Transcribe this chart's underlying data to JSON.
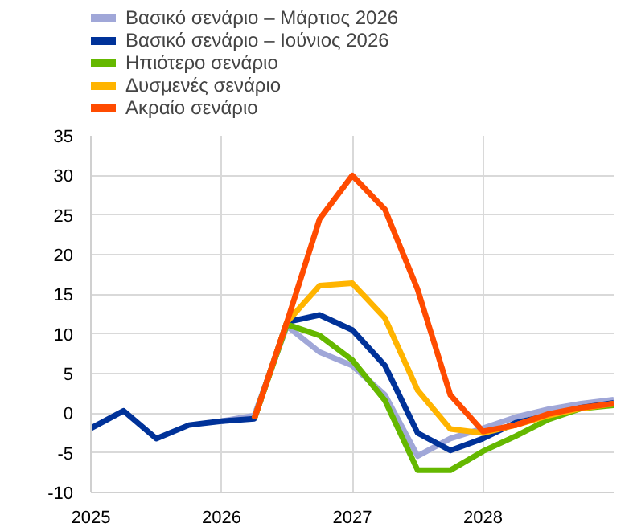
{
  "chart_data": {
    "type": "line",
    "xlim": [
      2025,
      2029
    ],
    "xticks": [
      2025,
      2026,
      2027,
      2028
    ],
    "ylim": [
      -10,
      35
    ],
    "yticks": [
      -10,
      -5,
      0,
      5,
      10,
      15,
      20,
      25,
      30,
      35
    ],
    "grid": true,
    "legend": "top left",
    "line_style": "solid",
    "marker": "none",
    "series": [
      {
        "name": "Βασικό σενάριο – Μάρτιος 2026",
        "color": "#a0a7d8",
        "x": [
          2026.0,
          2026.25,
          2026.5,
          2026.75,
          2027.0,
          2027.25,
          2027.5,
          2027.75,
          2028.0,
          2028.25,
          2028.5,
          2028.75,
          2029.0
        ],
        "values": [
          -1.0,
          -0.3,
          11.0,
          7.7,
          6.0,
          2.3,
          -5.4,
          -3.2,
          -1.9,
          -0.5,
          0.5,
          1.2,
          1.7
        ]
      },
      {
        "name": "Βασικό σενάριο – Ιούνιος 2026",
        "color": "#003299",
        "x": [
          2025.0,
          2025.25,
          2025.5,
          2025.75,
          2026.0,
          2026.25,
          2026.5,
          2026.75,
          2027.0,
          2027.25,
          2027.5,
          2027.75,
          2028.0,
          2028.25,
          2028.5,
          2028.75,
          2029.0
        ],
        "values": [
          -1.9,
          0.3,
          -3.2,
          -1.5,
          -1.0,
          -0.7,
          11.5,
          12.4,
          10.5,
          6.0,
          -2.5,
          -4.7,
          -3.2,
          -1.2,
          -0.3,
          0.7,
          1.3
        ]
      },
      {
        "name": "Ηπιότερο σενάριο",
        "color": "#65b800",
        "x": [
          2026.25,
          2026.5,
          2026.75,
          2027.0,
          2027.25,
          2027.5,
          2027.75,
          2028.0,
          2028.25,
          2028.5,
          2028.75,
          2029.0
        ],
        "values": [
          -0.7,
          11.2,
          9.8,
          6.7,
          1.6,
          -7.2,
          -7.2,
          -4.8,
          -2.9,
          -0.8,
          0.6,
          1.0
        ]
      },
      {
        "name": "Δυσμενές σενάριο",
        "color": "#ffb400",
        "x": [
          2026.25,
          2026.5,
          2026.75,
          2027.0,
          2027.25,
          2027.5,
          2027.75,
          2028.0,
          2028.25,
          2028.5,
          2028.75,
          2029.0
        ],
        "values": [
          -0.7,
          11.5,
          16.1,
          16.4,
          12.0,
          2.9,
          -2.0,
          -2.5,
          -1.5,
          -0.3,
          0.6,
          1.2
        ]
      },
      {
        "name": "Ακραίο σενάριο",
        "color": "#ff4b00",
        "x": [
          2026.25,
          2026.5,
          2026.75,
          2027.0,
          2027.25,
          2027.5,
          2027.75,
          2028.0,
          2028.25,
          2028.5,
          2028.75,
          2029.0
        ],
        "values": [
          -0.7,
          11.5,
          24.5,
          30.0,
          25.7,
          15.6,
          2.3,
          -2.3,
          -1.5,
          -0.1,
          0.7,
          1.2
        ]
      }
    ]
  }
}
